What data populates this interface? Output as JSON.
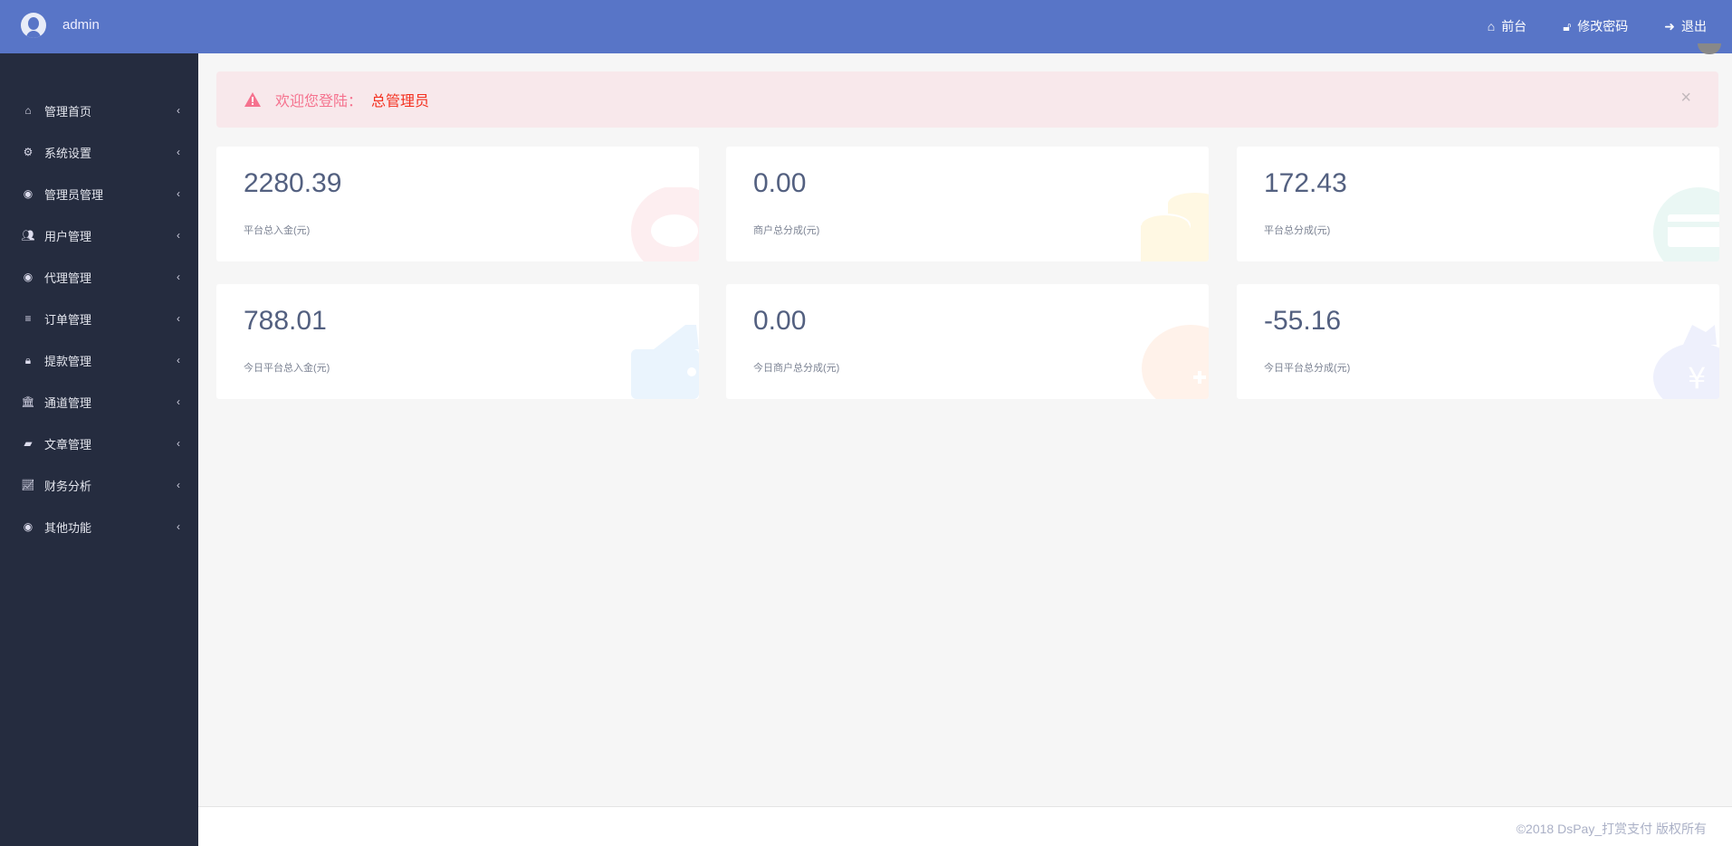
{
  "header": {
    "username": "admin",
    "nav": [
      {
        "label": "前台",
        "icon": "home-icon"
      },
      {
        "label": "修改密码",
        "icon": "unlock-icon"
      },
      {
        "label": "退出",
        "icon": "sign-out-icon"
      }
    ]
  },
  "sidebar": {
    "items": [
      {
        "label": "管理首页",
        "icon": "home-icon"
      },
      {
        "label": "系统设置",
        "icon": "cogs-icon"
      },
      {
        "label": "管理员管理",
        "icon": "user-circle-icon"
      },
      {
        "label": "用户管理",
        "icon": "users-icon"
      },
      {
        "label": "代理管理",
        "icon": "user-circle-icon"
      },
      {
        "label": "订单管理",
        "icon": "list-icon"
      },
      {
        "label": "提款管理",
        "icon": "lock-icon"
      },
      {
        "label": "通道管理",
        "icon": "bank-icon"
      },
      {
        "label": "文章管理",
        "icon": "book-icon"
      },
      {
        "label": "财务分析",
        "icon": "line-chart-icon"
      },
      {
        "label": "其他功能",
        "icon": "user-circle-icon"
      }
    ]
  },
  "alert": {
    "text": "欢迎您登陆：",
    "role": "总管理员",
    "close": "×"
  },
  "cards": [
    {
      "value": "2280.39",
      "label": "平台总入金(元)",
      "icon": "piggy-bank-icon",
      "color": "#fdeef0"
    },
    {
      "value": "0.00",
      "label": "商户总分成(元)",
      "icon": "coins-icon",
      "color": "#fff8e3"
    },
    {
      "value": "172.43",
      "label": "平台总分成(元)",
      "icon": "credit-card-icon",
      "color": "#eaf7f4"
    },
    {
      "value": "788.01",
      "label": "今日平台总入金(元)",
      "icon": "wallet-icon",
      "color": "#eaf4fd"
    },
    {
      "value": "0.00",
      "label": "今日商户总分成(元)",
      "icon": "coin-plus-icon",
      "color": "#fff2ea"
    },
    {
      "value": "-55.16",
      "label": "今日平台总分成(元)",
      "icon": "money-bag-icon",
      "color": "#eef0fc"
    }
  ],
  "footer": {
    "text": "©2018 DsPay_打赏支付 版权所有"
  }
}
